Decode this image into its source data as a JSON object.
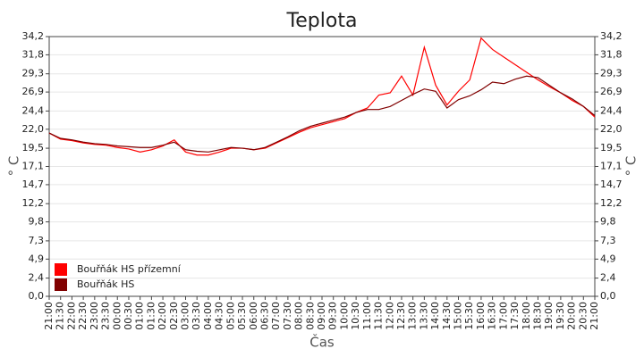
{
  "chart_data": {
    "type": "line",
    "title": "Teplota",
    "xlabel": "Čas",
    "ylabel": "° C",
    "categories": [
      "21:00",
      "21:30",
      "22:00",
      "22:30",
      "23:00",
      "23:30",
      "00:00",
      "00:30",
      "01:00",
      "01:30",
      "02:00",
      "02:30",
      "03:00",
      "03:30",
      "04:00",
      "04:30",
      "05:00",
      "05:30",
      "06:00",
      "06:30",
      "07:00",
      "07:30",
      "08:00",
      "08:30",
      "09:00",
      "09:30",
      "10:00",
      "10:30",
      "11:00",
      "11:30",
      "12:00",
      "12:30",
      "13:00",
      "13:30",
      "14:00",
      "14:30",
      "15:00",
      "15:30",
      "16:00",
      "16:30",
      "17:00",
      "17:30",
      "18:00",
      "18:30",
      "19:00",
      "19:30",
      "20:00",
      "20:30",
      "21:00"
    ],
    "series": [
      {
        "name": "Bouřňák HS přízemní",
        "color": "#ff0000",
        "values": [
          21.5,
          20.7,
          20.5,
          20.2,
          20.0,
          19.9,
          19.6,
          19.4,
          19.0,
          19.3,
          19.8,
          20.6,
          19.0,
          18.6,
          18.6,
          19.0,
          19.5,
          19.5,
          19.3,
          19.5,
          20.2,
          20.9,
          21.6,
          22.2,
          22.6,
          23.0,
          23.4,
          24.2,
          24.8,
          26.5,
          26.8,
          29.0,
          26.5,
          32.8,
          27.8,
          25.2,
          27.0,
          28.5,
          34.0,
          32.5,
          31.5,
          30.5,
          29.5,
          28.5,
          27.6,
          26.8,
          25.8,
          25.0,
          23.6
        ]
      },
      {
        "name": "Bouřňák HS",
        "color": "#800000",
        "values": [
          21.5,
          20.8,
          20.6,
          20.3,
          20.1,
          20.0,
          19.8,
          19.7,
          19.6,
          19.6,
          19.9,
          20.3,
          19.3,
          19.1,
          19.0,
          19.3,
          19.6,
          19.5,
          19.3,
          19.6,
          20.3,
          21.0,
          21.8,
          22.4,
          22.8,
          23.2,
          23.6,
          24.2,
          24.6,
          24.6,
          25.0,
          25.8,
          26.6,
          27.3,
          27.0,
          24.8,
          25.9,
          26.4,
          27.2,
          28.2,
          28.0,
          28.6,
          29.0,
          28.8,
          27.8,
          26.8,
          26.0,
          25.0,
          23.8
        ]
      }
    ],
    "ylim": [
      0,
      34.2
    ],
    "yticks": [
      {
        "value": 0,
        "label": "0,0"
      },
      {
        "value": 2.4,
        "label": "2,4"
      },
      {
        "value": 4.9,
        "label": "4,9"
      },
      {
        "value": 7.3,
        "label": "7,3"
      },
      {
        "value": 9.8,
        "label": "9,8"
      },
      {
        "value": 12.2,
        "label": "12,2"
      },
      {
        "value": 14.7,
        "label": "14,7"
      },
      {
        "value": 17.1,
        "label": "17,1"
      },
      {
        "value": 19.5,
        "label": "19,5"
      },
      {
        "value": 22,
        "label": "22,0"
      },
      {
        "value": 24.4,
        "label": "24,4"
      },
      {
        "value": 26.9,
        "label": "26,9"
      },
      {
        "value": 29.3,
        "label": "29,3"
      },
      {
        "value": 31.8,
        "label": "31,8"
      },
      {
        "value": 34.2,
        "label": "34,2"
      }
    ],
    "grid": true,
    "legend": "lower left"
  }
}
